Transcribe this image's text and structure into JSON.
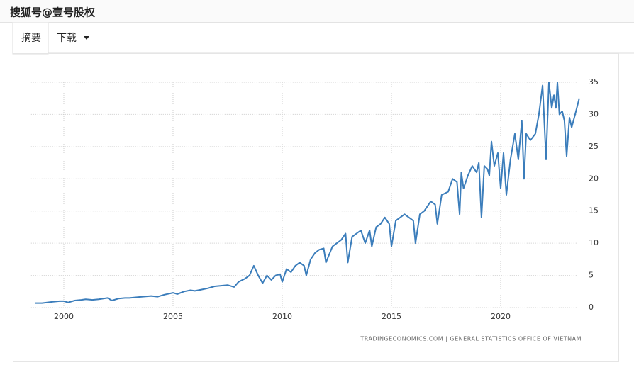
{
  "header": {
    "watermark": "搜狐号@壹号股权",
    "tabs": [
      "摘要",
      "下载"
    ]
  },
  "chart_data": {
    "type": "line",
    "x": [
      1998.7,
      1999.0,
      1999.5,
      1999.8,
      2000.0,
      2000.2,
      2000.5,
      2000.8,
      2001.0,
      2001.3,
      2001.6,
      2002.0,
      2002.2,
      2002.5,
      2002.8,
      2003.0,
      2003.3,
      2003.6,
      2004.0,
      2004.3,
      2004.6,
      2005.0,
      2005.2,
      2005.5,
      2005.8,
      2006.0,
      2006.3,
      2006.6,
      2006.9,
      2007.2,
      2007.5,
      2007.8,
      2008.0,
      2008.3,
      2008.5,
      2008.7,
      2008.9,
      2009.1,
      2009.3,
      2009.5,
      2009.7,
      2009.9,
      2010.0,
      2010.2,
      2010.4,
      2010.6,
      2010.8,
      2011.0,
      2011.1,
      2011.3,
      2011.5,
      2011.7,
      2011.9,
      2012.0,
      2012.3,
      2012.5,
      2012.7,
      2012.9,
      2013.0,
      2013.2,
      2013.4,
      2013.6,
      2013.8,
      2014.0,
      2014.1,
      2014.3,
      2014.5,
      2014.7,
      2014.9,
      2015.0,
      2015.2,
      2015.4,
      2015.6,
      2015.8,
      2016.0,
      2016.1,
      2016.3,
      2016.5,
      2016.8,
      2017.0,
      2017.1,
      2017.3,
      2017.6,
      2017.8,
      2018.0,
      2018.12,
      2018.2,
      2018.3,
      2018.5,
      2018.7,
      2018.9,
      2019.0,
      2019.12,
      2019.25,
      2019.4,
      2019.48,
      2019.58,
      2019.71,
      2019.87,
      2020.0,
      2020.13,
      2020.26,
      2020.45,
      2020.65,
      2020.81,
      2020.97,
      2021.07,
      2021.17,
      2021.36,
      2021.59,
      2021.75,
      2021.92,
      2022.08,
      2022.21,
      2022.34,
      2022.44,
      2022.53,
      2022.6,
      2022.69,
      2022.82,
      2022.92,
      2023.02,
      2023.15,
      2023.25,
      2023.41,
      2023.6
    ],
    "series": [
      {
        "color": "#3b7dbb",
        "values": [
          0.7,
          0.7,
          0.9,
          1.0,
          1.0,
          0.8,
          1.1,
          1.2,
          1.3,
          1.2,
          1.3,
          1.5,
          1.1,
          1.4,
          1.5,
          1.5,
          1.6,
          1.7,
          1.8,
          1.7,
          2.0,
          2.3,
          2.1,
          2.5,
          2.7,
          2.6,
          2.8,
          3.0,
          3.3,
          3.4,
          3.5,
          3.2,
          4.0,
          4.5,
          5.0,
          6.5,
          5.0,
          3.8,
          5.0,
          4.3,
          5.0,
          5.2,
          4.0,
          6.0,
          5.5,
          6.5,
          7.0,
          6.5,
          5.0,
          7.5,
          8.5,
          9.0,
          9.2,
          7.0,
          9.5,
          10.0,
          10.5,
          11.5,
          7.0,
          11.0,
          11.5,
          12.0,
          10.0,
          12.0,
          9.5,
          12.5,
          13.0,
          14.0,
          13.0,
          9.5,
          13.5,
          14.0,
          14.5,
          14.0,
          13.5,
          10.0,
          14.5,
          15.0,
          16.5,
          16.0,
          13.0,
          17.5,
          18.0,
          20.0,
          19.5,
          14.5,
          21.0,
          18.5,
          20.5,
          22.0,
          21.0,
          22.5,
          14.0,
          22.0,
          21.5,
          20.5,
          25.8,
          22.0,
          24.0,
          18.5,
          24.0,
          17.5,
          23.0,
          27.0,
          23.0,
          29.0,
          20.0,
          27.0,
          26.0,
          27.0,
          30.0,
          34.5,
          23.0,
          35.0,
          31.0,
          33.0,
          31.0,
          35.0,
          30.0,
          30.5,
          29.0,
          23.5,
          29.5,
          28.0,
          30.0,
          32.5
        ]
      }
    ],
    "xlim": [
      1998.5,
      2023.8
    ],
    "xticks": [
      2000,
      2005,
      2010,
      2015,
      2020
    ],
    "ylim": [
      0,
      35
    ],
    "yticks": [
      0,
      5,
      10,
      15,
      20,
      25,
      30,
      35
    ],
    "grid": true,
    "source": "TRADINGECONOMICS.COM | GENERAL STATISTICS OFFICE OF VIETNAM"
  }
}
